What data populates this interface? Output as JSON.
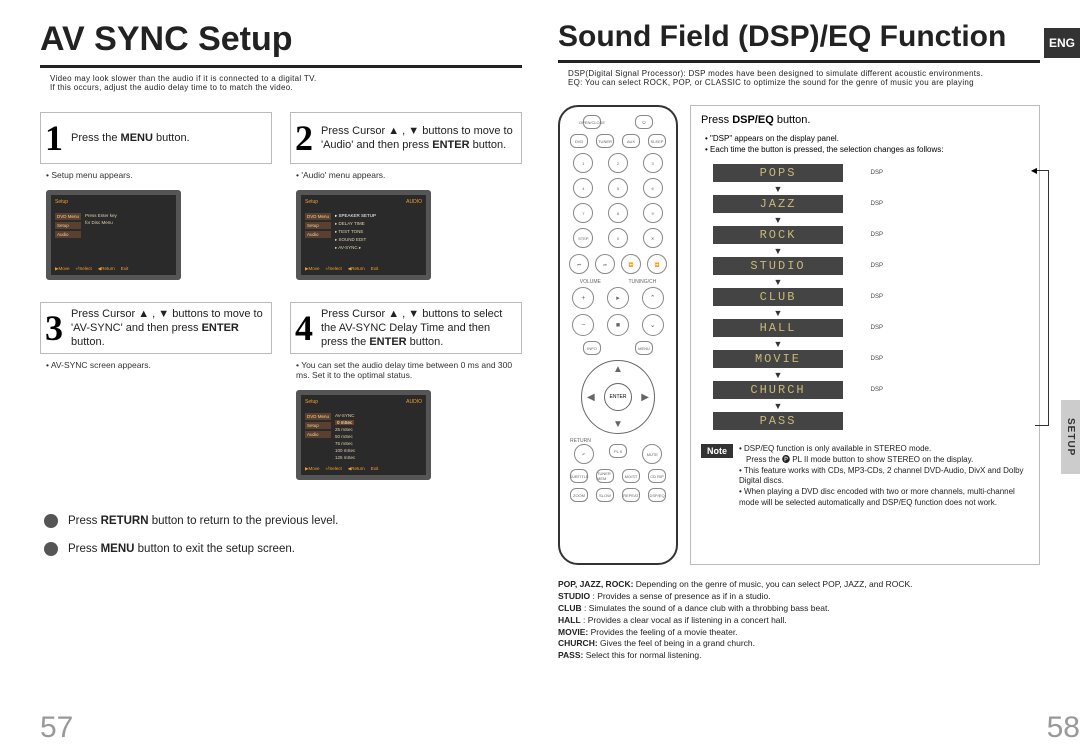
{
  "leftPage": {
    "title": "AV SYNC Setup",
    "subtitle": "Video may look slower than the audio if it is connected to a digital TV.\nIf this occurs, adjust the audio delay time to to match the video.",
    "steps": [
      {
        "num": "1",
        "text": "Press the <b>MENU</b> button.",
        "bullets": [
          "Setup menu appears."
        ],
        "screenshot": true
      },
      {
        "num": "2",
        "text": "Press Cursor ▲ , ▼ buttons to move to 'Audio' and then press <b>ENTER</b> button.",
        "bullets": [
          "'Audio' menu appears."
        ],
        "screenshot": true
      },
      {
        "num": "3",
        "text": "Press Cursor ▲ , ▼ buttons to move to 'AV-SYNC' and then press <b>ENTER</b> button.",
        "bullets": [
          "AV-SYNC screen appears."
        ],
        "screenshot": false
      },
      {
        "num": "4",
        "text": "Press Cursor ▲ , ▼ buttons to select the AV-SYNC Delay Time and then press the <b>ENTER</b> button.",
        "bullets": [
          "You can set the audio delay time between 0 ms and 300 ms. Set it to the optimal status."
        ],
        "screenshot": true
      }
    ],
    "tips": [
      "Press <b>RETURN</b> button to return to the previous level.",
      "Press <b>MENU</b> button to exit the setup screen."
    ],
    "pageNo": "57"
  },
  "rightPage": {
    "title": "Sound Field (DSP)/EQ Function",
    "subtitle": "DSP(Digital Signal Processor): DSP modes have been designed to simulate different acoustic environments.\nEQ: You can select ROCK, POP, or CLASSIC to optimize the sound for the genre of music you are playing",
    "langBadge": "ENG",
    "setupTab": "SETUP",
    "action": {
      "text": "Press <b>DSP/EQ</b> button.",
      "bullets": [
        "\"DSP\" appears on the display panel.",
        "Each time the button is pressed, the selection changes as follows:"
      ],
      "modes": [
        "POPS",
        "JAZZ",
        "ROCK",
        "STUDIO",
        "CLUB",
        "HALL",
        "MOVIE",
        "CHURCH",
        "PASS"
      ],
      "arrowLabel": "DSP"
    },
    "note": {
      "label": "Note",
      "items": [
        {
          "t": "DSP/EQ function is only available in STEREO mode.",
          "b": true
        },
        {
          "t": "Press the 🅟 PL II mode button to show STEREO on the display.",
          "b": false,
          "indent": true
        },
        {
          "t": "This feature works with CDs, MP3-CDs, 2 channel DVD-Audio, DivX and Dolby Digital discs.",
          "b": true
        },
        {
          "t": "When playing a DVD disc encoded with two or more channels, multi-channel mode will be selected automatically and DSP/EQ function does not work.",
          "b": true
        }
      ]
    },
    "defs": [
      {
        "k": "POP, JAZZ, ROCK:",
        "v": " Depending on the genre of music, you can select POP, JAZZ, and ROCK."
      },
      {
        "k": "STUDIO",
        "v": " : Provides a sense of presence as if in a studio."
      },
      {
        "k": "CLUB",
        "v": " : Simulates the sound of a dance club with a throbbing bass beat."
      },
      {
        "k": "HALL",
        "v": " : Provides a clear vocal as if listening in a concert hall."
      },
      {
        "k": "MOVIE:",
        "v": " Provides the feeling of a movie theater."
      },
      {
        "k": "CHURCH:",
        "v": " Gives the feel of being in a grand church."
      },
      {
        "k": "PASS:",
        "v": " Select this for normal listening."
      }
    ],
    "pageNo": "58"
  },
  "colors": {
    "pageBg": "#ffffff",
    "text": "#222222",
    "stepBorder": "#bbbbbb",
    "dspBg": "#444444",
    "dspText": "#c8b878",
    "noteBg": "#333333",
    "pageNo": "#999999"
  }
}
